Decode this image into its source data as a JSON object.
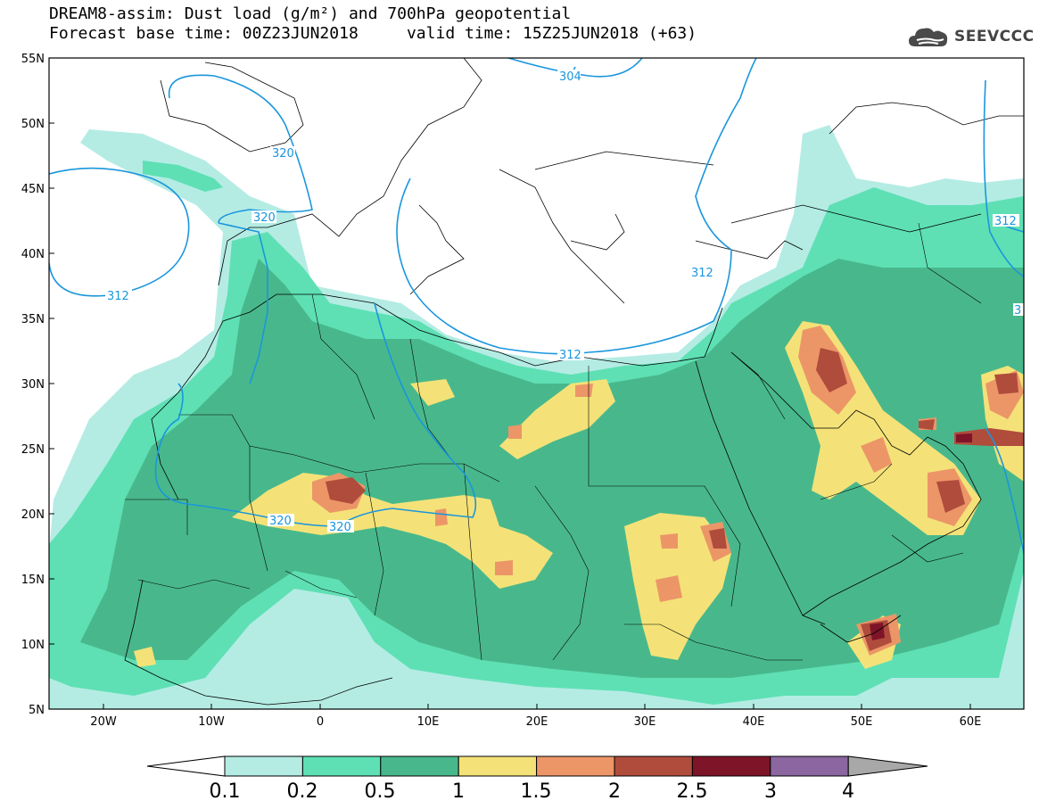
{
  "header": {
    "title_line1": "DREAM8-assim: Dust load (g/m²) and 700hPa geopotential",
    "title_line2": "Forecast base time: 00Z23JUN2018     valid time: 15Z25JUN2018 (+63)"
  },
  "logo": {
    "text": "SEEVCCC",
    "icon": "cloud-icon"
  },
  "map": {
    "lat_ticks": [
      "55N",
      "50N",
      "45N",
      "40N",
      "35N",
      "30N",
      "25N",
      "20N",
      "15N",
      "10N",
      "5N"
    ],
    "lon_ticks": [
      "20W",
      "10W",
      "0",
      "10E",
      "20E",
      "30E",
      "40E",
      "50E",
      "60E"
    ],
    "contour_labels": [
      "304",
      "320",
      "320",
      "312",
      "312",
      "312",
      "312",
      "320",
      "320",
      "3"
    ]
  },
  "colorbar": {
    "labels": [
      "0.1",
      "0.2",
      "0.5",
      "1",
      "1.5",
      "2",
      "2.5",
      "3",
      "4"
    ],
    "colors": [
      "#ffffff",
      "#b4ece4",
      "#5ee0b4",
      "#48b88c",
      "#f4e278",
      "#ec9668",
      "#b04c3c",
      "#7e1428",
      "#8c66a0",
      "#a8a8a8"
    ]
  }
}
